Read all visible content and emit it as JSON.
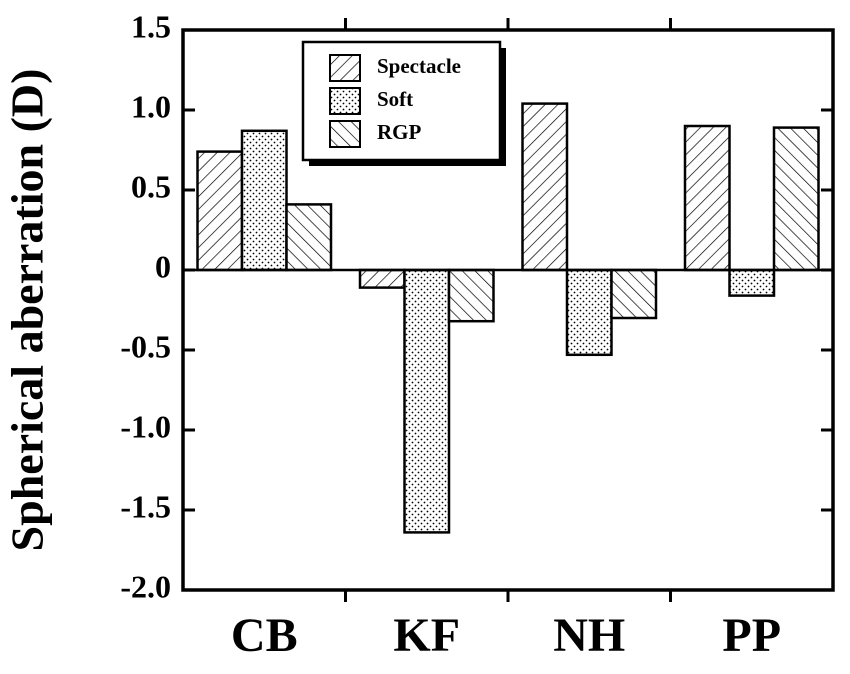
{
  "chart_data": {
    "type": "bar",
    "y_label": "Spherical aberration (D)",
    "categories": [
      "CB",
      "KF",
      "NH",
      "PP"
    ],
    "series": [
      {
        "name": "Spectacle",
        "color": "#000000",
        "pattern": "forward-hatch",
        "values": [
          0.74,
          -0.11,
          1.04,
          0.9
        ]
      },
      {
        "name": "Soft",
        "color": "#000000",
        "pattern": "dots",
        "values": [
          0.87,
          -1.64,
          -0.53,
          -0.16
        ]
      },
      {
        "name": "RGP",
        "color": "#000000",
        "pattern": "back-hatch",
        "values": [
          0.41,
          -0.32,
          -0.3,
          0.89
        ]
      }
    ],
    "ylim": [
      -2.0,
      1.5
    ],
    "yticks": [
      {
        "value": -2.0,
        "label": "-2.0"
      },
      -1.5,
      {
        "value": -1.0,
        "label": "-1.0"
      },
      -0.5,
      0,
      0.5,
      {
        "value": 1.0,
        "label": "1.0"
      },
      1.5
    ],
    "legend": "upper left",
    "grid": false
  }
}
